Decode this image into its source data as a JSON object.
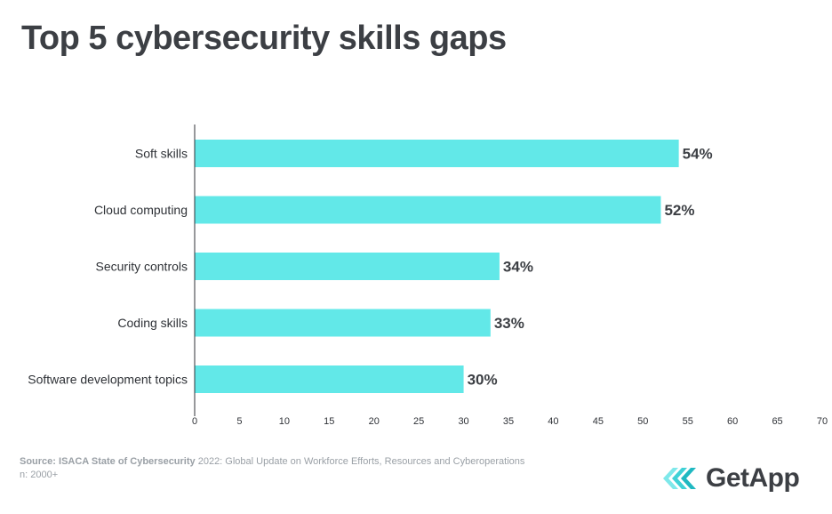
{
  "title": "Top 5 cybersecurity skills gaps",
  "chart_data": {
    "type": "bar",
    "orientation": "horizontal",
    "categories": [
      "Soft skills",
      "Cloud computing",
      "Security controls",
      "Coding skills",
      "Software development topics"
    ],
    "values": [
      54,
      52,
      34,
      33,
      30
    ],
    "data_labels": [
      "54%",
      "52%",
      "34%",
      "33%",
      "30%"
    ],
    "xlim": [
      0,
      70
    ],
    "xticks": [
      0,
      5,
      10,
      15,
      20,
      25,
      30,
      35,
      40,
      45,
      50,
      55,
      60,
      65,
      70
    ],
    "grid": false,
    "bar_color": "#62e8e8"
  },
  "footer": {
    "source_bold": "Source: ISACA State of Cybersecurity",
    "source_rest": " 2022: Global Update on Workforce Efforts, Resources and Cyberoperations",
    "sample": "n: 2000+"
  },
  "logo": {
    "text": "GetApp",
    "icon": "getapp-chevrons-icon",
    "colors": [
      "#7ee8ea",
      "#3fd1d6",
      "#1fb8c1"
    ]
  }
}
